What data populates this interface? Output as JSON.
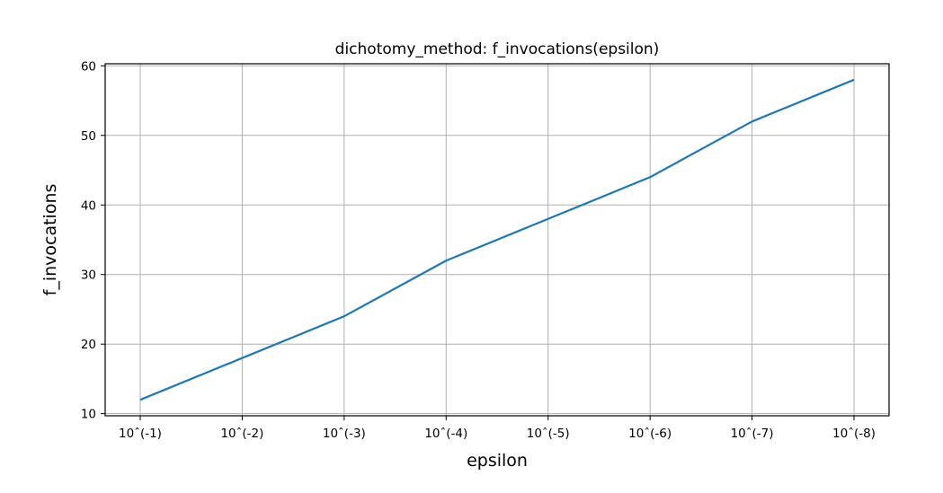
{
  "chart_data": {
    "type": "line",
    "title": "dichotomy_method: f_invocations(epsilon)",
    "xlabel": "epsilon",
    "ylabel": "f_invocations",
    "categories": [
      "10ˆ(-1)",
      "10ˆ(-2)",
      "10ˆ(-3)",
      "10ˆ(-4)",
      "10ˆ(-5)",
      "10ˆ(-6)",
      "10ˆ(-7)",
      "10ˆ(-8)"
    ],
    "series": [
      {
        "values": [
          12,
          18,
          24,
          32,
          38,
          44,
          52,
          58
        ],
        "color": "#1f77b4"
      }
    ],
    "ylim": [
      9.7,
      60.3
    ],
    "yticks": [
      10,
      20,
      30,
      40,
      50,
      60
    ],
    "grid": true,
    "legend": "none"
  }
}
